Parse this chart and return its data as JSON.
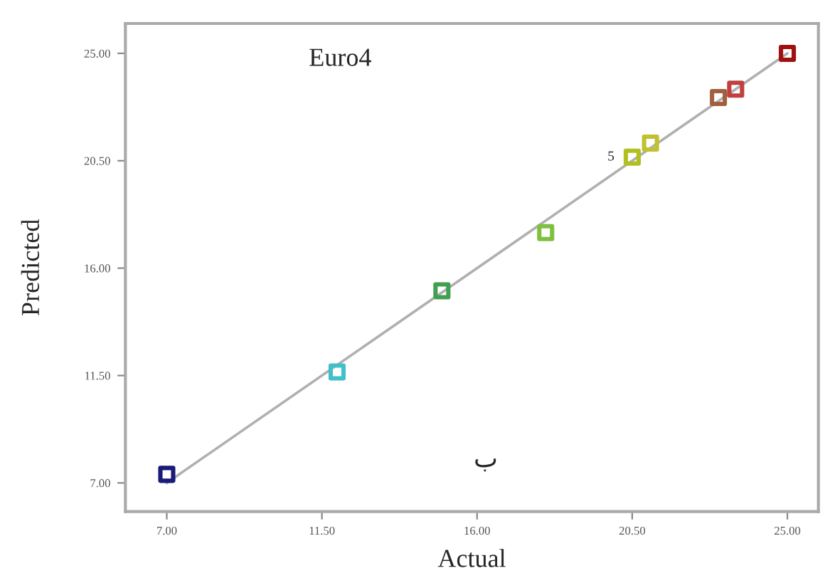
{
  "chart_data": {
    "type": "scatter",
    "xlabel": "Actual",
    "ylabel": "Predicted",
    "annotations": [
      "Euro4",
      "ب",
      {
        "text": "5",
        "x": 20.5,
        "y": 20.65
      }
    ],
    "series": [
      {
        "x": [
          7.0,
          11.94,
          14.98,
          17.99,
          20.5,
          21.03,
          23.0,
          23.5,
          25.0
        ],
        "values": [
          7.36,
          11.65,
          15.05,
          17.49,
          20.65,
          21.24,
          23.15,
          23.5,
          25.0
        ],
        "colors": [
          "#1a1a7a",
          "#40c0c8",
          "#40a050",
          "#80c040",
          "#b0c020",
          "#c0c030",
          "#a06040",
          "#c04040",
          "#a01010"
        ],
        "marker": "square"
      },
      {
        "type": "line",
        "x": [
          7.0,
          25.0
        ],
        "values": [
          7.0,
          25.0
        ],
        "color": "#b0b0b0",
        "line_style": "solid",
        "marker": "none"
      }
    ],
    "xlim": [
      5.8,
      25.9
    ],
    "ylim": [
      5.8,
      26.25
    ],
    "xticks": [
      {
        "value": 7,
        "label": "7.00"
      },
      {
        "value": 11.5,
        "label": "11.50"
      },
      {
        "value": 16,
        "label": "16.00"
      },
      {
        "value": 20.5,
        "label": "20.50"
      },
      {
        "value": 25,
        "label": "25.00"
      }
    ],
    "yticks": [
      {
        "value": 7,
        "label": "7.00"
      },
      {
        "value": 11.5,
        "label": "11.50"
      },
      {
        "value": 16,
        "label": "16.00"
      },
      {
        "value": 20.5,
        "label": "20.50"
      },
      {
        "value": 25,
        "label": "25.00"
      }
    ],
    "grid": false,
    "legend": false
  }
}
